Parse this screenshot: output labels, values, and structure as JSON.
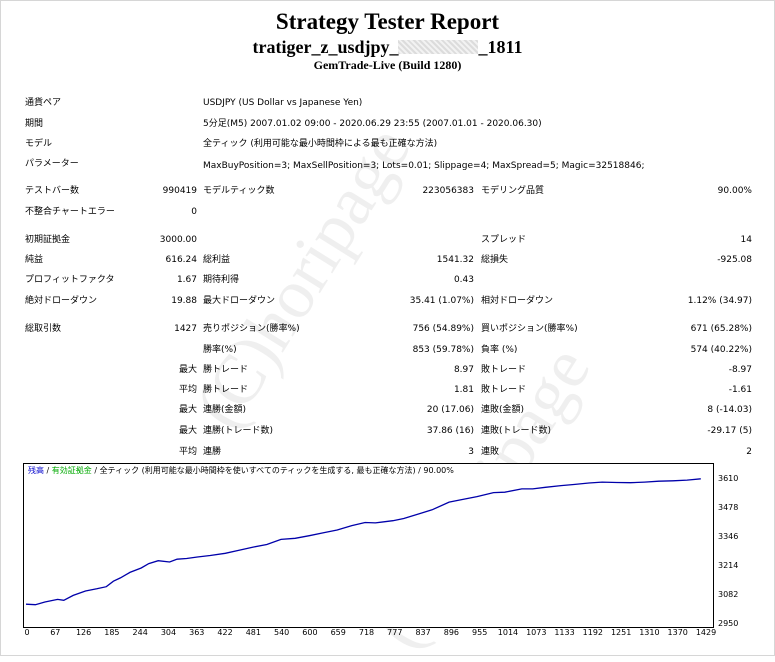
{
  "header": {
    "title": "Strategy Tester Report",
    "ea_prefix": "tratiger_z_usdjpy_",
    "ea_suffix": "_1811",
    "server": "GemTrade-Live (Build 1280)"
  },
  "info": {
    "pair_label": "通貨ペア",
    "pair_value": "USDJPY (US Dollar vs Japanese Yen)",
    "period_label": "期間",
    "period_value": "5分足(M5) 2007.01.02 09:00 - 2020.06.29 23:55 (2007.01.01 - 2020.06.30)",
    "model_label": "モデル",
    "model_value": "全ティック (利用可能な最小時間枠による最も正確な方法)",
    "params_label": "パラメーター",
    "params_value": "MaxBuyPosition=3; MaxSellPosition=3; Lots=0.01; Slippage=4; MaxSpread=5; Magic=32518846;"
  },
  "stats": {
    "bars_label": "テストバー数",
    "bars_value": "990419",
    "ticks_label": "モデルティック数",
    "ticks_value": "223056383",
    "quality_label": "モデリング品質",
    "quality_value": "90.00%",
    "mismatch_label": "不整合チャートエラー",
    "mismatch_value": "0",
    "deposit_label": "初期証拠金",
    "deposit_value": "3000.00",
    "spread_label": "スプレッド",
    "spread_value": "14",
    "net_label": "純益",
    "net_value": "616.24",
    "gross_profit_label": "総利益",
    "gross_profit_value": "1541.32",
    "gross_loss_label": "総損失",
    "gross_loss_value": "-925.08",
    "pf_label": "プロフィットファクタ",
    "pf_value": "1.67",
    "payoff_label": "期待利得",
    "payoff_value": "0.43",
    "abs_dd_label": "絶対ドローダウン",
    "abs_dd_value": "19.88",
    "max_dd_label": "最大ドローダウン",
    "max_dd_value": "35.41 (1.07%)",
    "rel_dd_label": "相対ドローダウン",
    "rel_dd_value": "1.12% (34.97)",
    "trades_label": "総取引数",
    "trades_value": "1427",
    "short_label": "売りポジション(勝率%)",
    "short_value": "756 (54.89%)",
    "long_label": "買いポジション(勝率%)",
    "long_value": "671 (65.28%)",
    "win_label": "勝率(%)",
    "win_value": "853 (59.78%)",
    "loss_label": "負率 (%)",
    "loss_value": "574 (40.22%)",
    "max_label": "最大",
    "avg_label": "平均",
    "largest_win_label": "勝トレード",
    "largest_win_value": "8.97",
    "largest_loss_label": "敗トレード",
    "largest_loss_value": "-8.97",
    "avg_win_label": "勝トレード",
    "avg_win_value": "1.81",
    "avg_loss_label": "敗トレード",
    "avg_loss_value": "-1.61",
    "max_consec_win_label": "連勝(金額)",
    "max_consec_win_value": "20 (17.06)",
    "max_consec_loss_label": "連敗(金額)",
    "max_consec_loss_value": "8 (-14.03)",
    "max_consec_profit_label": "連勝(トレード数)",
    "max_consec_profit_value": "37.86 (16)",
    "max_consec_lossamt_label": "連敗(トレード数)",
    "max_consec_lossamt_value": "-29.17 (5)",
    "avg_consec_win_label": "連勝",
    "avg_consec_win_value": "3",
    "avg_consec_loss_label": "連敗",
    "avg_consec_loss_value": "2"
  },
  "watermark": "(C)horipage",
  "chart_legend": {
    "balance": "残高",
    "equity": "有効証拠金",
    "rest": " / 全ティック (利用可能な最小時間枠を使いすべてのティックを生成する, 最も正確な方法)  / 90.00%"
  },
  "chart_data": {
    "type": "line",
    "x_ticks": [
      "0",
      "67",
      "126",
      "185",
      "244",
      "304",
      "363",
      "422",
      "481",
      "540",
      "600",
      "659",
      "718",
      "777",
      "837",
      "896",
      "955",
      "1014",
      "1073",
      "1133",
      "1192",
      "1251",
      "1310",
      "1370",
      "1429"
    ],
    "y_ticks": [
      "3610",
      "3478",
      "3346",
      "3214",
      "3082",
      "2950"
    ],
    "ylim": [
      2950,
      3610
    ],
    "xlim": [
      0,
      1440
    ],
    "series": [
      {
        "color": "#0000aa",
        "x": [
          0,
          20,
          40,
          67,
          80,
          100,
          126,
          150,
          170,
          185,
          200,
          220,
          244,
          260,
          280,
          304,
          320,
          340,
          363,
          390,
          422,
          450,
          481,
          510,
          540,
          570,
          600,
          630,
          659,
          690,
          718,
          740,
          777,
          800,
          837,
          860,
          896,
          920,
          955,
          990,
          1014,
          1050,
          1073,
          1100,
          1133,
          1160,
          1192,
          1220,
          1251,
          1280,
          1310,
          1340,
          1370,
          1400,
          1429
        ],
        "y": [
          3040,
          3038,
          3050,
          3062,
          3058,
          3080,
          3100,
          3110,
          3120,
          3145,
          3160,
          3185,
          3205,
          3225,
          3238,
          3232,
          3245,
          3248,
          3255,
          3262,
          3272,
          3285,
          3300,
          3312,
          3335,
          3340,
          3352,
          3365,
          3378,
          3398,
          3412,
          3410,
          3420,
          3430,
          3455,
          3470,
          3505,
          3515,
          3530,
          3548,
          3550,
          3565,
          3565,
          3572,
          3580,
          3585,
          3592,
          3596,
          3594,
          3593,
          3596,
          3600,
          3602,
          3605,
          3611
        ]
      }
    ]
  }
}
